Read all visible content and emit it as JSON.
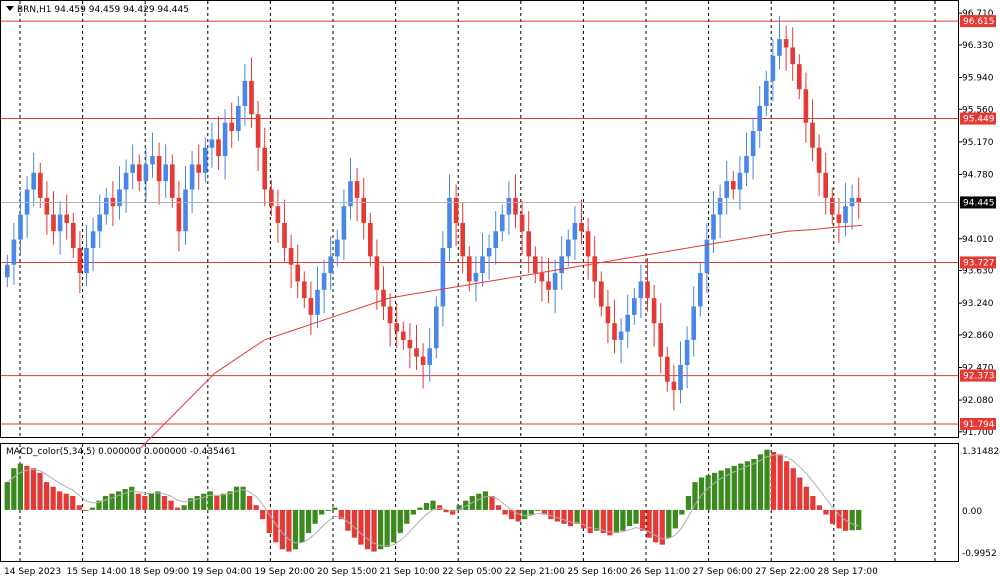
{
  "header": {
    "symbol_line": "BRN,H1  94.459 94.459 94.429 94.445"
  },
  "macd": {
    "label": "MACD_color(5,34,5) 0.000000 0.000000 -0.435461",
    "scale_top": "1.314824",
    "scale_zero": "0.00",
    "scale_bottom": "-0.9952"
  },
  "price_axis": {
    "ticks": [
      "96.710",
      "96.330",
      "95.940",
      "95.560",
      "95.170",
      "94.780",
      "94.010",
      "93.630",
      "93.240",
      "92.860",
      "92.470",
      "92.080",
      "91.700"
    ],
    "levels": [
      {
        "name": "level-96615",
        "label": "96.615",
        "value": 96.615
      },
      {
        "name": "level-95449",
        "label": "95.449",
        "value": 95.449
      },
      {
        "name": "level-93727",
        "label": "93.727",
        "value": 93.727
      },
      {
        "name": "level-92373",
        "label": "92.373",
        "value": 92.373
      },
      {
        "name": "level-91794",
        "label": "91.794",
        "value": 91.794
      }
    ],
    "current": {
      "label": "94.445",
      "value": 94.445
    }
  },
  "time_axis": {
    "labels": [
      "14 Sep 2023",
      "15 Sep 14:00",
      "18 Sep 09:00",
      "19 Sep 04:00",
      "19 Sep 20:00",
      "20 Sep 15:00",
      "21 Sep 10:00",
      "22 Sep 05:00",
      "22 Sep 21:00",
      "25 Sep 16:00",
      "26 Sep 11:00",
      "27 Sep 06:00",
      "27 Sep 22:00",
      "28 Sep 17:00"
    ]
  },
  "colors": {
    "bull": "#4a86e8",
    "bear": "#e53935",
    "level": "#e53935",
    "ma": "#e53935",
    "macd_up": "#3a8a1e",
    "macd_down": "#e53935",
    "grid": "#000000"
  },
  "chart_data": {
    "type": "candlestick",
    "symbol": "BRN",
    "timeframe": "H1",
    "ohlc_last": {
      "open": 94.459,
      "high": 94.459,
      "low": 94.429,
      "close": 94.445
    },
    "closes": [
      93.7,
      94.0,
      94.3,
      94.6,
      94.8,
      94.5,
      94.3,
      94.1,
      94.3,
      94.2,
      93.9,
      93.6,
      93.9,
      94.1,
      94.3,
      94.5,
      94.4,
      94.6,
      94.8,
      94.9,
      94.7,
      94.9,
      95.0,
      94.7,
      94.9,
      94.5,
      94.1,
      94.6,
      94.9,
      94.8,
      95.1,
      95.2,
      95.0,
      95.4,
      95.3,
      95.6,
      95.9,
      95.5,
      95.1,
      94.6,
      94.4,
      94.2,
      93.9,
      93.7,
      93.5,
      93.3,
      93.1,
      93.4,
      93.6,
      93.8,
      94.0,
      94.4,
      94.7,
      94.5,
      94.2,
      93.8,
      93.4,
      93.2,
      93.0,
      92.9,
      92.8,
      92.7,
      92.6,
      92.5,
      92.7,
      93.2,
      93.9,
      94.5,
      94.2,
      93.8,
      93.5,
      93.6,
      93.8,
      93.9,
      94.1,
      94.3,
      94.5,
      94.3,
      94.1,
      93.8,
      93.6,
      93.5,
      93.4,
      93.6,
      93.8,
      94.0,
      94.2,
      94.1,
      93.8,
      93.5,
      93.2,
      93.0,
      92.8,
      92.9,
      93.1,
      93.3,
      93.5,
      93.3,
      93.0,
      92.6,
      92.3,
      92.2,
      92.5,
      92.8,
      93.2,
      93.6,
      94.0,
      94.3,
      94.5,
      94.7,
      94.6,
      94.8,
      95.0,
      95.3,
      95.6,
      95.9,
      96.2,
      96.4,
      96.3,
      96.1,
      95.8,
      95.4,
      95.1,
      94.8,
      94.5,
      94.3,
      94.2,
      94.4,
      94.5,
      94.445
    ],
    "ma_series": [
      91.5,
      91.8,
      92.1,
      92.4,
      92.6,
      92.8,
      92.9,
      93.0,
      93.1,
      93.2,
      93.3,
      93.35,
      93.4,
      93.45,
      93.5,
      93.55,
      93.6,
      93.65,
      93.7,
      93.75,
      93.8,
      93.85,
      93.9,
      93.95,
      94.0,
      94.05,
      94.1,
      94.12,
      94.15,
      94.17
    ],
    "levels": [
      96.615,
      95.449,
      93.727,
      92.373,
      91.794
    ],
    "y_range": [
      91.65,
      96.82
    ],
    "macd": {
      "params": [
        5,
        34,
        5
      ],
      "values_label": [
        0.0,
        0.0,
        -0.435461
      ],
      "range": [
        -0.9952,
        1.314824
      ],
      "histogram": [
        0.6,
        0.9,
        1.0,
        0.95,
        0.9,
        0.8,
        0.6,
        0.5,
        0.4,
        0.35,
        0.3,
        0.1,
        0.0,
        0.05,
        0.2,
        0.3,
        0.35,
        0.4,
        0.45,
        0.5,
        0.35,
        0.3,
        0.35,
        0.4,
        0.3,
        0.2,
        0.05,
        0.1,
        0.25,
        0.3,
        0.35,
        0.4,
        0.3,
        0.35,
        0.4,
        0.5,
        0.5,
        0.3,
        0.1,
        -0.2,
        -0.5,
        -0.7,
        -0.85,
        -0.9,
        -0.85,
        -0.7,
        -0.5,
        -0.3,
        -0.1,
        0.0,
        0.05,
        -0.2,
        -0.45,
        -0.6,
        -0.75,
        -0.85,
        -0.9,
        -0.85,
        -0.8,
        -0.7,
        -0.5,
        -0.3,
        -0.1,
        0.05,
        0.15,
        0.2,
        0.1,
        -0.05,
        -0.1,
        0.1,
        0.2,
        0.3,
        0.35,
        0.4,
        0.3,
        0.1,
        -0.1,
        -0.2,
        -0.25,
        -0.2,
        -0.1,
        0.0,
        -0.1,
        -0.2,
        -0.25,
        -0.3,
        -0.35,
        -0.3,
        -0.4,
        -0.5,
        -0.45,
        -0.5,
        -0.55,
        -0.5,
        -0.45,
        -0.35,
        -0.3,
        -0.45,
        -0.6,
        -0.7,
        -0.75,
        -0.6,
        -0.4,
        -0.1,
        0.3,
        0.6,
        0.7,
        0.75,
        0.8,
        0.85,
        0.9,
        0.95,
        1.0,
        1.05,
        1.1,
        1.2,
        1.3,
        1.25,
        1.2,
        1.05,
        0.9,
        0.7,
        0.5,
        0.3,
        0.1,
        -0.1,
        -0.3,
        -0.4,
        -0.45,
        -0.44,
        -0.435
      ]
    }
  }
}
